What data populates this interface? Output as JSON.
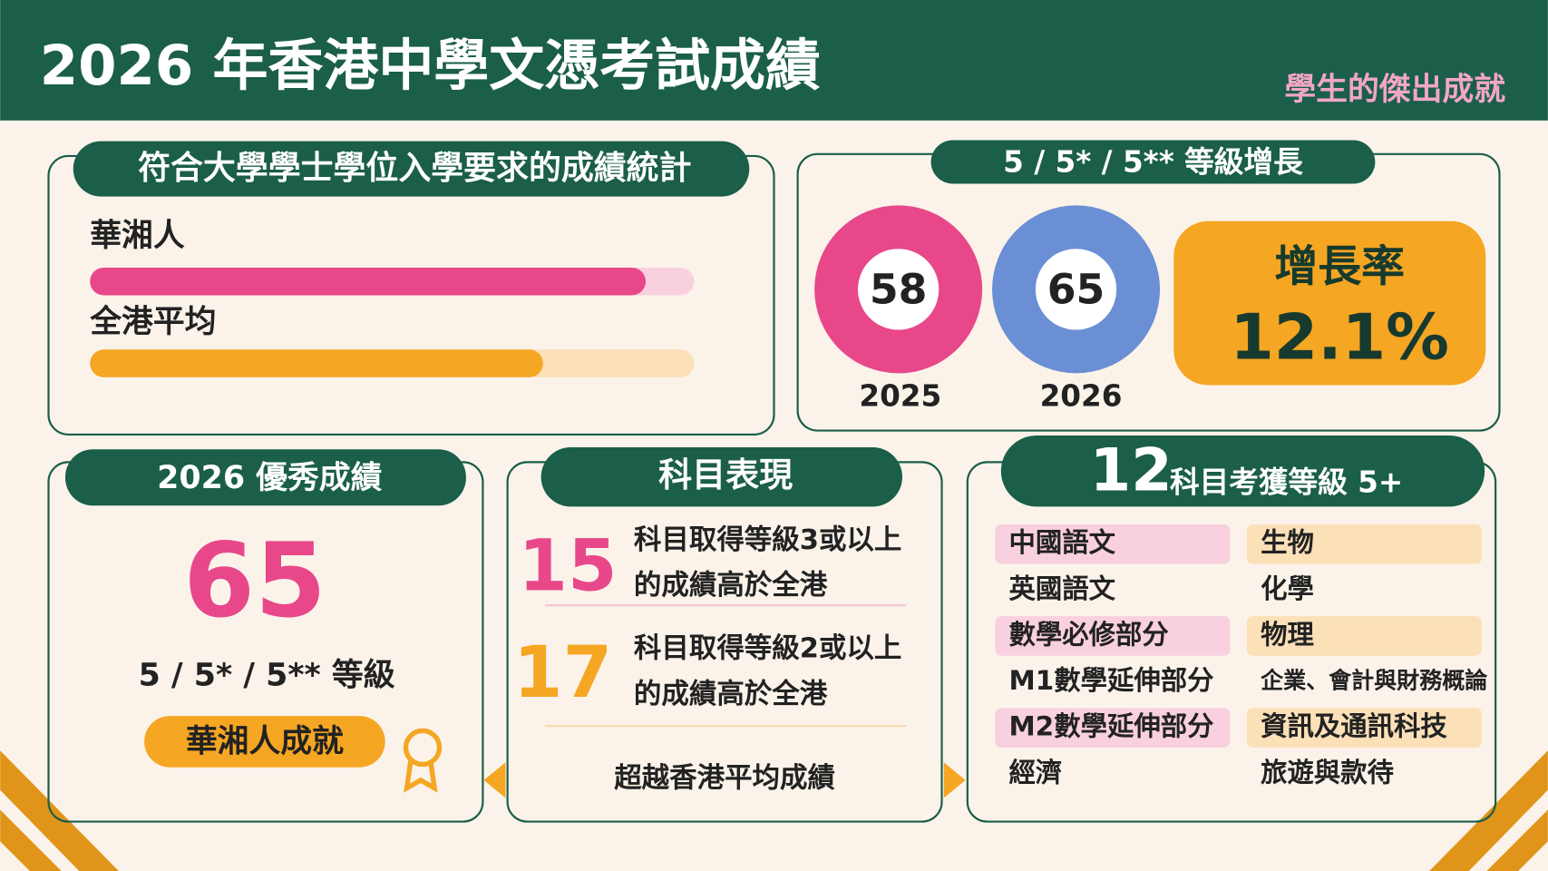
{
  "header": {
    "title": "2026 年香港中學文憑考試成績",
    "subtitle": "學生的傑出成就"
  },
  "university_stats": {
    "title": "符合大學學士學位入學要求的成績統計",
    "bars": [
      {
        "label": "華湘人",
        "value": 92,
        "color": "#e8488a",
        "track": "#f9d0e0"
      },
      {
        "label": "全港平均",
        "value": 75,
        "color": "#f5a623",
        "track": "#fbe0b8"
      }
    ],
    "xlim": [
      0,
      100
    ]
  },
  "growth": {
    "title": "5 / 5* / 5** 等級增長",
    "years": [
      {
        "value": 58,
        "year": "2025"
      },
      {
        "value": 65,
        "year": "2026"
      }
    ],
    "rate_label": "增長率",
    "rate": "12.1%"
  },
  "excellence": {
    "title": "2026 優秀成績",
    "count": 65,
    "grade_label": "5 / 5* / 5** 等級",
    "badge": "華湘人成就"
  },
  "subjects": {
    "title": "科目表現",
    "items": [
      {
        "count": 15,
        "lines": [
          "科目取得等級3或以上",
          "的成績高於全港"
        ]
      },
      {
        "count": 17,
        "lines": [
          "科目取得等級2或以上",
          "的成績高於全港"
        ]
      }
    ],
    "footer": "超越香港平均成績"
  },
  "level5": {
    "count": 12,
    "label": "科目考獲等級 5+",
    "columns": [
      [
        "中國語文",
        "英國語文",
        "數學必修部分",
        "M1數學延伸部分",
        "M2數學延伸部分",
        "經濟"
      ],
      [
        "生物",
        "化學",
        "物理",
        "企業、會計與財務概論",
        "資訊及通訊科技",
        "旅遊與款待"
      ]
    ]
  }
}
